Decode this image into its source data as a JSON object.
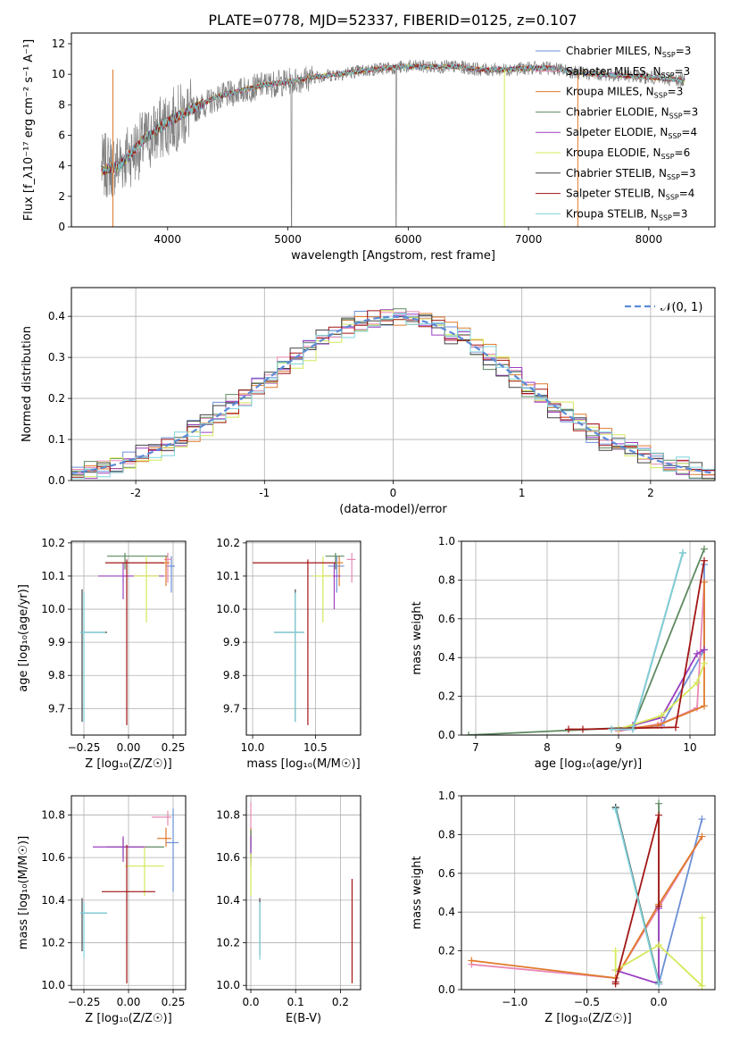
{
  "figure_title": "PLATE=0778, MJD=52337, FIBERID=0125, z=0.107",
  "models": [
    {
      "key": "ch_miles",
      "label": "Chabrier MILES, N",
      "sub": "SSP",
      "tail": "=3",
      "color": "#6b8fd6"
    },
    {
      "key": "sa_miles",
      "label": "Salpeter MILES, N",
      "sub": "SSP",
      "tail": "=3",
      "color": "#e889b5"
    },
    {
      "key": "kr_miles",
      "label": "Kroupa MILES, N",
      "sub": "SSP",
      "tail": "=3",
      "color": "#e07a2c"
    },
    {
      "key": "ch_elodie",
      "label": "Chabrier ELODIE, N",
      "sub": "SSP",
      "tail": "=3",
      "color": "#5e8a60"
    },
    {
      "key": "sa_elodie",
      "label": "Salpeter ELODIE, N",
      "sub": "SSP",
      "tail": "=4",
      "color": "#9b3fc0"
    },
    {
      "key": "kr_elodie",
      "label": "Kroupa ELODIE, N",
      "sub": "SSP",
      "tail": "=6",
      "color": "#d6e85a"
    },
    {
      "key": "ch_stelib",
      "label": "Chabrier STELIB, N",
      "sub": "SSP",
      "tail": "=3",
      "color": "#444444"
    },
    {
      "key": "sa_stelib",
      "label": "Salpeter STELIB, N",
      "sub": "SSP",
      "tail": "=4",
      "color": "#a31515"
    },
    {
      "key": "kr_stelib",
      "label": "Kroupa STELIB, N",
      "sub": "SSP",
      "tail": "=3",
      "color": "#7fd3dd"
    }
  ],
  "chart_data": [
    {
      "id": "spectrum",
      "type": "line",
      "xlabel": "wavelength [Angstrom, rest frame]",
      "ylabel": "Flux [f_λ10⁻¹⁷ erg cm⁻² s⁻¹ A⁻¹]",
      "xlim": [
        3200,
        8550
      ],
      "ylim": [
        0,
        12.7
      ],
      "xticks": [
        4000,
        5000,
        6000,
        7000,
        8000
      ],
      "yticks": [
        0,
        2,
        4,
        6,
        8,
        10,
        12
      ],
      "data_color": "#808080",
      "data_anchor_x": [
        3450,
        3600,
        3800,
        4000,
        4200,
        4400,
        4600,
        4800,
        5000,
        5200,
        5400,
        5600,
        5800,
        6000,
        6200,
        6400,
        6600,
        6800,
        7000,
        7200,
        7400,
        7600,
        7800,
        8000,
        8300
      ],
      "data_anchor_y": [
        3.9,
        4.2,
        5.5,
        6.8,
        7.6,
        8.4,
        8.9,
        9.3,
        9.5,
        9.8,
        10.0,
        10.2,
        10.4,
        10.5,
        10.5,
        10.5,
        10.3,
        10.3,
        10.4,
        10.4,
        10.1,
        10.0,
        9.9,
        9.8,
        9.6
      ],
      "model_anchor_y": [
        3.7,
        4.0,
        5.7,
        6.9,
        7.7,
        8.5,
        8.9,
        9.3,
        9.5,
        9.8,
        10.0,
        10.2,
        10.4,
        10.5,
        10.5,
        10.5,
        10.3,
        10.3,
        10.4,
        10.4,
        10.1,
        10.0,
        9.9,
        9.8,
        9.6
      ]
    },
    {
      "id": "residuals",
      "type": "histogram",
      "xlabel": "(data-model)/error",
      "ylabel": "Normed distribution",
      "xlim": [
        -2.5,
        2.5
      ],
      "ylim": [
        0,
        0.47
      ],
      "xticks": [
        -2,
        -1,
        0,
        1,
        2
      ],
      "yticks": [
        0.0,
        0.1,
        0.2,
        0.3,
        0.4
      ],
      "legend_label": "𝒩(0, 1)",
      "legend_color": "#5b8bd6",
      "bin_width": 0.1
    },
    {
      "id": "age_vs_Z",
      "type": "errorbar",
      "xlabel": "Z [log₁₀(Z/Z☉)]",
      "ylabel": "age  [log₁₀(age/yr)]",
      "xlim": [
        -0.32,
        0.32
      ],
      "ylim": [
        9.62,
        10.205
      ],
      "xticks": [
        -0.25,
        0.0,
        0.25
      ],
      "xticklabels": [
        "−0.25",
        "0.00",
        "0.25"
      ],
      "yticks": [
        9.7,
        9.8,
        9.9,
        10.0,
        10.1,
        10.2
      ],
      "points": [
        {
          "m": 0,
          "x": 0.24,
          "y": 10.13,
          "xl": 0.26,
          "xh": 0.21,
          "yl": 10.05,
          "yh": 10.16
        },
        {
          "m": 1,
          "x": 0.22,
          "y": 10.15,
          "xl": 0.2,
          "xh": 0.24,
          "yl": 10.08,
          "yh": 10.17
        },
        {
          "m": 2,
          "x": 0.21,
          "y": 10.14,
          "xl": 0.18,
          "xh": 0.23,
          "yl": 10.07,
          "yh": 10.16
        },
        {
          "m": 3,
          "x": -0.02,
          "y": 10.16,
          "xl": -0.12,
          "xh": 0.22,
          "yl": 10.12,
          "yh": 10.17
        },
        {
          "m": 4,
          "x": -0.03,
          "y": 10.1,
          "xl": -0.17,
          "xh": 0.2,
          "yl": 10.03,
          "yh": 10.14
        },
        {
          "m": 5,
          "x": 0.1,
          "y": 10.1,
          "xl": 0.03,
          "xh": 0.17,
          "yl": 9.96,
          "yh": 10.16
        },
        {
          "m": 6,
          "x": -0.26,
          "y": 9.93,
          "xl": -0.27,
          "xh": -0.12,
          "yl": 9.66,
          "yh": 10.06
        },
        {
          "m": 7,
          "x": -0.01,
          "y": 10.14,
          "xl": -0.13,
          "xh": 0.2,
          "yl": 9.65,
          "yh": 10.15
        },
        {
          "m": 8,
          "x": -0.25,
          "y": 9.93,
          "xl": -0.27,
          "xh": -0.13,
          "yl": 9.66,
          "yh": 10.05
        }
      ]
    },
    {
      "id": "age_vs_mass",
      "type": "errorbar",
      "xlabel": "mass [log₁₀(M/M☉)]",
      "ylabel": "",
      "xlim": [
        9.95,
        10.86
      ],
      "ylim": [
        9.62,
        10.205
      ],
      "xticks": [
        10.0,
        10.5
      ],
      "xticklabels": [
        "10.0",
        "10.5"
      ],
      "yticks": [
        9.7,
        9.8,
        9.9,
        10.0,
        10.1,
        10.2
      ],
      "points": [
        {
          "m": 0,
          "x": 10.67,
          "y": 10.13,
          "xl": 10.6,
          "xh": 10.73,
          "yl": 10.05,
          "yh": 10.16
        },
        {
          "m": 1,
          "x": 10.79,
          "y": 10.15,
          "xl": 10.75,
          "xh": 10.82,
          "yl": 10.08,
          "yh": 10.17
        },
        {
          "m": 2,
          "x": 10.69,
          "y": 10.14,
          "xl": 10.65,
          "xh": 10.72,
          "yl": 10.07,
          "yh": 10.16
        },
        {
          "m": 3,
          "x": 10.66,
          "y": 10.16,
          "xl": 10.58,
          "xh": 10.73,
          "yl": 10.12,
          "yh": 10.17
        },
        {
          "m": 4,
          "x": 10.65,
          "y": 10.1,
          "xl": 10.56,
          "xh": 10.7,
          "yl": 10.0,
          "yh": 10.14
        },
        {
          "m": 5,
          "x": 10.56,
          "y": 10.1,
          "xl": 10.48,
          "xh": 10.64,
          "yl": 9.96,
          "yh": 10.16
        },
        {
          "m": 6,
          "x": 10.34,
          "y": 9.93,
          "xl": 10.17,
          "xh": 10.41,
          "yl": 9.66,
          "yh": 10.06
        },
        {
          "m": 7,
          "x": 10.44,
          "y": 10.14,
          "xl": 10.0,
          "xh": 10.66,
          "yl": 9.65,
          "yh": 10.15
        },
        {
          "m": 8,
          "x": 10.34,
          "y": 9.93,
          "xl": 10.17,
          "xh": 10.41,
          "yl": 9.66,
          "yh": 10.05
        }
      ]
    },
    {
      "id": "weight_vs_age",
      "type": "line",
      "xlabel": "age  [log₁₀(age/yr)]",
      "ylabel": "mass weight",
      "xlim": [
        6.8,
        10.35
      ],
      "ylim": [
        0,
        1.0
      ],
      "xticks": [
        7,
        8,
        9,
        10
      ],
      "yticks": [
        0.0,
        0.2,
        0.4,
        0.6,
        0.8,
        1.0
      ],
      "series": [
        {
          "m": 0,
          "x": [
            9.0,
            9.6,
            10.2,
            10.2
          ],
          "y": [
            0.03,
            0.05,
            0.44,
            0.88
          ]
        },
        {
          "m": 1,
          "x": [
            9.0,
            9.6,
            10.1,
            10.2
          ],
          "y": [
            0.02,
            0.06,
            0.14,
            0.79
          ]
        },
        {
          "m": 2,
          "x": [
            9.0,
            9.55,
            10.2,
            10.2
          ],
          "y": [
            0.03,
            0.05,
            0.15,
            0.79
          ]
        },
        {
          "m": 3,
          "x": [
            6.9,
            9.2,
            10.2
          ],
          "y": [
            0.0,
            0.04,
            0.96
          ]
        },
        {
          "m": 4,
          "x": [
            9.2,
            9.6,
            10.1,
            10.2
          ],
          "y": [
            0.05,
            0.09,
            0.42,
            0.44
          ]
        },
        {
          "m": 5,
          "x": [
            9.0,
            9.6,
            10.1,
            10.2
          ],
          "y": [
            0.03,
            0.1,
            0.27,
            0.37
          ]
        },
        {
          "m": 6,
          "x": [
            8.9,
            9.2,
            9.9
          ],
          "y": [
            0.03,
            0.03,
            0.94
          ]
        },
        {
          "m": 7,
          "x": [
            8.3,
            8.5,
            9.8,
            10.2
          ],
          "y": [
            0.03,
            0.03,
            0.04,
            0.9
          ]
        },
        {
          "m": 8,
          "x": [
            8.9,
            9.2,
            9.9
          ],
          "y": [
            0.03,
            0.03,
            0.94
          ]
        }
      ]
    },
    {
      "id": "mass_vs_Z",
      "type": "errorbar",
      "xlabel": "Z [log₁₀(Z/Z☉)]",
      "ylabel": "mass [log₁₀(M/M☉)]",
      "xlim": [
        -0.32,
        0.32
      ],
      "ylim": [
        9.98,
        10.89
      ],
      "xticks": [
        -0.25,
        0.0,
        0.25
      ],
      "xticklabels": [
        "−0.25",
        "0.00",
        "0.25"
      ],
      "yticks": [
        10.0,
        10.2,
        10.4,
        10.6,
        10.8
      ],
      "points": [
        {
          "m": 0,
          "x": 0.25,
          "y": 10.67,
          "xl": 0.21,
          "xh": 0.28,
          "yl": 10.44,
          "yh": 10.83
        },
        {
          "m": 1,
          "x": 0.22,
          "y": 10.79,
          "xl": 0.13,
          "xh": 0.24,
          "yl": 10.75,
          "yh": 10.82
        },
        {
          "m": 2,
          "x": 0.21,
          "y": 10.69,
          "xl": 0.16,
          "xh": 0.24,
          "yl": 10.65,
          "yh": 10.74
        },
        {
          "m": 3,
          "x": -0.03,
          "y": 10.65,
          "xl": -0.12,
          "xh": 0.2,
          "yl": 10.6,
          "yh": 10.69
        },
        {
          "m": 4,
          "x": -0.03,
          "y": 10.65,
          "xl": -0.2,
          "xh": 0.1,
          "yl": 10.58,
          "yh": 10.7
        },
        {
          "m": 5,
          "x": 0.09,
          "y": 10.56,
          "xl": -0.02,
          "xh": 0.2,
          "yl": 10.42,
          "yh": 10.65
        },
        {
          "m": 6,
          "x": -0.26,
          "y": 10.34,
          "xl": -0.27,
          "xh": -0.12,
          "yl": 10.16,
          "yh": 10.41
        },
        {
          "m": 7,
          "x": -0.01,
          "y": 10.44,
          "xl": -0.15,
          "xh": 0.15,
          "yl": 10.01,
          "yh": 10.66
        },
        {
          "m": 8,
          "x": -0.25,
          "y": 10.34,
          "xl": -0.27,
          "xh": -0.12,
          "yl": 10.13,
          "yh": 10.39
        }
      ]
    },
    {
      "id": "mass_vs_EBV",
      "type": "errorbar",
      "xlabel": "E(B-V)",
      "ylabel": "",
      "xlim": [
        -0.01,
        0.245
      ],
      "ylim": [
        9.98,
        10.89
      ],
      "xticks": [
        0.0,
        0.1,
        0.2
      ],
      "xticklabels": [
        "0.0",
        "0.1",
        "0.2"
      ],
      "yticks": [
        10.0,
        10.2,
        10.4,
        10.6,
        10.8
      ],
      "points": [
        {
          "m": 0,
          "x": 0.0,
          "y": 10.67,
          "xl": 0.0,
          "xh": 0.0,
          "yl": 10.6,
          "yh": 10.73
        },
        {
          "m": 1,
          "x": 0.0,
          "y": 10.79,
          "xl": 0.0,
          "xh": 0.0,
          "yl": 10.7,
          "yh": 10.86
        },
        {
          "m": 2,
          "x": 0.0,
          "y": 10.69,
          "xl": 0.0,
          "xh": 0.0,
          "yl": 10.65,
          "yh": 10.74
        },
        {
          "m": 3,
          "x": 0.0,
          "y": 10.66,
          "xl": 0.0,
          "xh": 0.0,
          "yl": 10.58,
          "yh": 10.73
        },
        {
          "m": 4,
          "x": 0.0,
          "y": 10.65,
          "xl": 0.0,
          "xh": 0.0,
          "yl": 10.56,
          "yh": 10.7
        },
        {
          "m": 5,
          "x": 0.0,
          "y": 10.56,
          "xl": 0.0,
          "xh": 0.0,
          "yl": 10.42,
          "yh": 10.62
        },
        {
          "m": 6,
          "x": 0.02,
          "y": 10.34,
          "xl": 0.02,
          "xh": 0.02,
          "yl": 10.14,
          "yh": 10.41
        },
        {
          "m": 7,
          "x": 0.226,
          "y": 10.44,
          "xl": 0.226,
          "xh": 0.226,
          "yl": 10.01,
          "yh": 10.5
        },
        {
          "m": 8,
          "x": 0.02,
          "y": 10.34,
          "xl": 0.02,
          "xh": 0.02,
          "yl": 10.12,
          "yh": 10.39
        }
      ]
    },
    {
      "id": "weight_vs_Z",
      "type": "line",
      "xlabel": "Z [log₁₀(Z/Z☉)]",
      "ylabel": "mass weight",
      "xlim": [
        -1.37,
        0.39
      ],
      "ylim": [
        0,
        1.0
      ],
      "xticks": [
        -1.0,
        -0.5,
        0.0
      ],
      "xticklabels": [
        "−1.0",
        "−0.5",
        "0.0"
      ],
      "yticks": [
        0.0,
        0.2,
        0.4,
        0.6,
        0.8,
        1.0
      ],
      "series": [
        {
          "m": 0,
          "x": [
            0.0,
            0.3
          ],
          "y": [
            0.03,
            0.88
          ]
        },
        {
          "m": 1,
          "x": [
            -1.3,
            -0.3,
            0.3
          ],
          "y": [
            0.13,
            0.06,
            0.79
          ]
        },
        {
          "m": 2,
          "x": [
            -1.3,
            -0.3,
            0.0,
            0.3
          ],
          "y": [
            0.15,
            0.06,
            0.44,
            0.79
          ]
        },
        {
          "m": 3,
          "x": [
            -0.3,
            0.0,
            0.0
          ],
          "y": [
            0.94,
            0.04,
            0.96
          ]
        },
        {
          "m": 4,
          "x": [
            -0.3,
            0.0,
            0.0
          ],
          "y": [
            0.1,
            0.03,
            0.42
          ]
        },
        {
          "m": 5,
          "x": [
            -0.3,
            -0.3,
            0.0,
            0.3,
            0.3
          ],
          "y": [
            0.2,
            0.1,
            0.23,
            0.02,
            0.37
          ]
        },
        {
          "m": 6,
          "x": [
            -0.3,
            0.0
          ],
          "y": [
            0.94,
            0.03
          ]
        },
        {
          "m": 7,
          "x": [
            -0.3,
            -0.3,
            0.0,
            0.0
          ],
          "y": [
            0.03,
            0.04,
            0.9,
            0.43
          ]
        },
        {
          "m": 8,
          "x": [
            -0.3,
            0.0
          ],
          "y": [
            0.93,
            0.03
          ]
        }
      ]
    }
  ]
}
